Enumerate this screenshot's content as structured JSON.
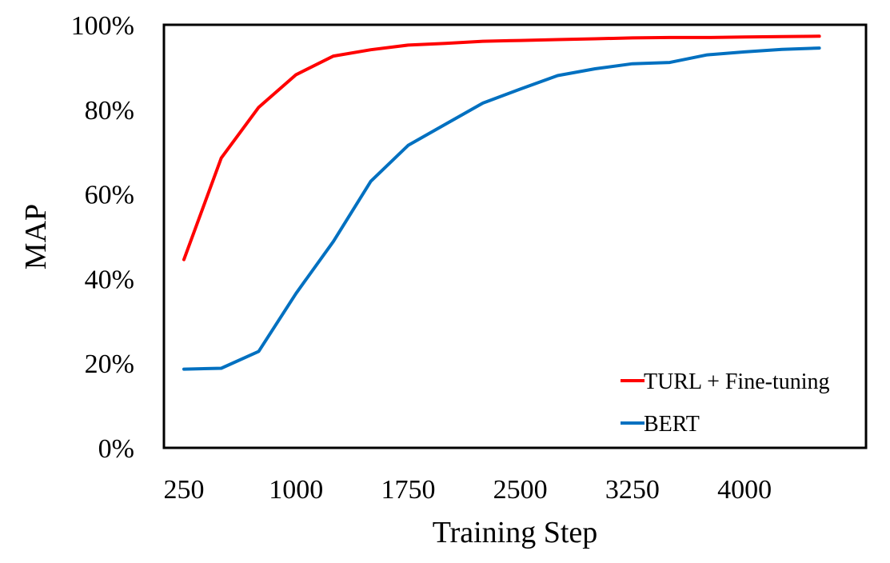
{
  "chart_data": {
    "type": "line",
    "title": "",
    "xlabel": "Training Step",
    "ylabel": "MAP",
    "xlim": [
      250,
      4700
    ],
    "ylim": [
      0,
      100
    ],
    "x_ticks": [
      250,
      1000,
      1750,
      2500,
      3250,
      4000
    ],
    "x_tick_labels": [
      "250",
      "1000",
      "1750",
      "2500",
      "3250",
      "4000"
    ],
    "y_ticks": [
      0,
      20,
      40,
      60,
      80,
      100
    ],
    "y_tick_labels": [
      "0%",
      "20%",
      "40%",
      "60%",
      "80%",
      "100%"
    ],
    "grid": false,
    "legend_position": "bottom-right",
    "x": [
      250,
      500,
      750,
      1000,
      1250,
      1500,
      1750,
      2000,
      2250,
      2500,
      2750,
      3000,
      3250,
      3500,
      3750,
      4000,
      4250,
      4500
    ],
    "series": [
      {
        "name": "TURL + Fine-tuning",
        "color": "#ff0000",
        "values": [
          44.5,
          68.5,
          80.5,
          88.2,
          92.6,
          94.1,
          95.2,
          95.6,
          96.1,
          96.3,
          96.5,
          96.7,
          96.9,
          97.0,
          97.0,
          97.1,
          97.2,
          97.3
        ]
      },
      {
        "name": "BERT",
        "color": "#0070c0",
        "values": [
          18.6,
          18.8,
          22.8,
          36.5,
          48.8,
          63.0,
          71.5,
          76.5,
          81.5,
          84.8,
          88.0,
          89.6,
          90.8,
          91.1,
          92.9,
          93.6,
          94.2,
          94.5
        ]
      }
    ]
  }
}
